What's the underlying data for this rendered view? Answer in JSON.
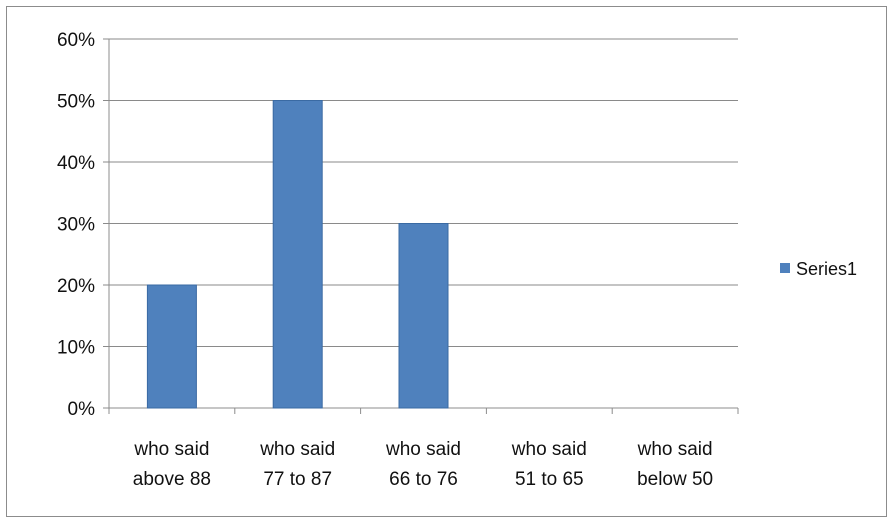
{
  "chart_data": {
    "type": "bar",
    "categories": [
      [
        "who said",
        "above 88"
      ],
      [
        "who said",
        "77 to 87"
      ],
      [
        "who said",
        "66 to 76"
      ],
      [
        "who said",
        "51 to 65"
      ],
      [
        "who said",
        "below 50"
      ]
    ],
    "series": [
      {
        "name": "Series1",
        "values": [
          20,
          50,
          30,
          0,
          0
        ],
        "color": "#4f81bd"
      }
    ],
    "yticks": [
      "0%",
      "10%",
      "20%",
      "30%",
      "40%",
      "50%",
      "60%"
    ],
    "ylim": [
      0,
      60
    ],
    "grid": true,
    "legend": "right"
  }
}
